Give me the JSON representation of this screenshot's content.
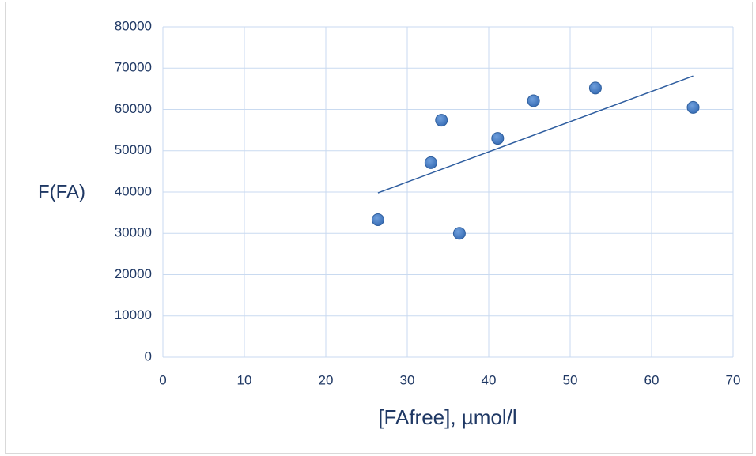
{
  "chart_data": {
    "type": "scatter",
    "title": "",
    "xlabel": "[FAfree], µmol/l",
    "ylabel": "F(FA)",
    "xlim": [
      0,
      70
    ],
    "ylim": [
      0,
      80000
    ],
    "x_ticks": [
      0,
      10,
      20,
      30,
      40,
      50,
      60,
      70
    ],
    "y_ticks": [
      0,
      10000,
      20000,
      30000,
      40000,
      50000,
      60000,
      70000,
      80000
    ],
    "grid": true,
    "legend": "none",
    "series": [
      {
        "points": [
          {
            "x": 26.4,
            "y": 33300
          },
          {
            "x": 32.9,
            "y": 47100
          },
          {
            "x": 34.2,
            "y": 57400
          },
          {
            "x": 36.4,
            "y": 30000
          },
          {
            "x": 41.1,
            "y": 53000
          },
          {
            "x": 45.5,
            "y": 62100
          },
          {
            "x": 53.1,
            "y": 65200
          },
          {
            "x": 65.1,
            "y": 60500
          }
        ],
        "marker_color": "#3a6fb7"
      }
    ],
    "trendline": {
      "type": "linear",
      "from": {
        "x": 26.4,
        "y": 39800
      },
      "to": {
        "x": 65.1,
        "y": 68100
      },
      "color": "#2e5d9f"
    },
    "colors": {
      "grid": "#c9daf0",
      "text": "#1f3864"
    }
  }
}
